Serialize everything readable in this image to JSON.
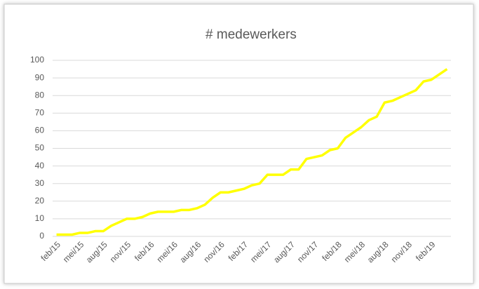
{
  "chart_data": {
    "type": "line",
    "title": "# medewerkers",
    "categories": [
      "feb/15",
      null,
      null,
      "mei/15",
      null,
      null,
      "aug/15",
      null,
      null,
      "nov/15",
      null,
      null,
      "feb/16",
      null,
      null,
      "mei/16",
      null,
      null,
      "aug/16",
      null,
      null,
      "nov/16",
      null,
      null,
      "feb/17",
      null,
      null,
      "mei/17",
      null,
      null,
      "aug/17",
      null,
      null,
      "nov/17",
      null,
      null,
      "feb/18",
      null,
      null,
      "mei/18",
      null,
      null,
      "aug/18",
      null,
      null,
      "nov/18",
      null,
      null,
      "feb/19",
      null,
      null
    ],
    "series": [
      {
        "name": "# medewerkers",
        "color": "#ffff00",
        "values": [
          1,
          1,
          1,
          2,
          2,
          3,
          3,
          6,
          8,
          10,
          10,
          11,
          13,
          14,
          14,
          14,
          15,
          15,
          16,
          18,
          22,
          25,
          25,
          26,
          27,
          29,
          30,
          35,
          35,
          35,
          38,
          38,
          44,
          45,
          46,
          49,
          50,
          56,
          59,
          62,
          66,
          68,
          76,
          77,
          79,
          81,
          83,
          88,
          89,
          92,
          95
        ]
      }
    ],
    "ylim": [
      0,
      100
    ],
    "yticks": [
      0,
      10,
      20,
      30,
      40,
      50,
      60,
      70,
      80,
      90,
      100
    ],
    "grid": true
  }
}
